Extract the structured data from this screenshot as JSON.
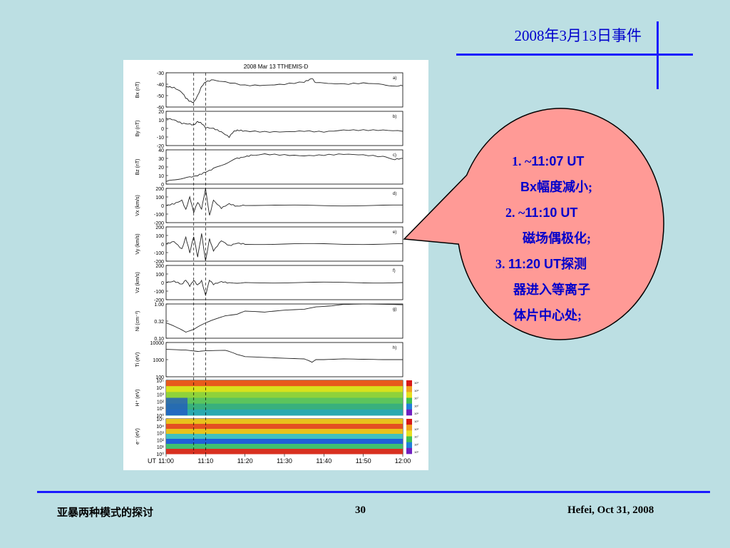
{
  "slide": {
    "title": "2008年3月13日事件",
    "footer_left": "亚暴两种模式的探讨",
    "page_number": "30",
    "footer_right": "Hefei, Oct 31, 2008"
  },
  "callout": {
    "item1_prefix": "1. ~",
    "item1_main": "11:07 UT",
    "item1_cont_a": "Bx",
    "item1_cont_b": "幅度减小;",
    "item2_prefix": "2. ~",
    "item2_main": "11:10 UT",
    "item2_cont": "磁场偶极化;",
    "item3_prefix": "3. ",
    "item3_main": "11:20 UT",
    "item3_tail": "探测",
    "item3_cont1": "器进入等离子",
    "item3_cont2": "体片中心处;",
    "fill_color": "#ff9a96"
  },
  "chart_data": {
    "type": "line",
    "title": "2008 Mar 13 TTHEMIS-D",
    "x_label": "UT",
    "x_ticks": [
      "11:00",
      "11:10",
      "11:20",
      "11:30",
      "11:40",
      "11:50",
      "12:00"
    ],
    "x_range": [
      "11:00",
      "12:00"
    ],
    "event_markers": [
      "11:07",
      "11:10"
    ],
    "panels": [
      {
        "id": "a)",
        "ylabel": "Bx (nT)",
        "ylim": [
          -60,
          -30
        ],
        "yticks": [
          "-30",
          "-40",
          "-50",
          "-60"
        ],
        "series": [
          [
            0,
            -42
          ],
          [
            2,
            -43
          ],
          [
            4,
            -47
          ],
          [
            5,
            -52
          ],
          [
            6,
            -55
          ],
          [
            7,
            -56
          ],
          [
            8,
            -50
          ],
          [
            9,
            -42
          ],
          [
            10,
            -38
          ],
          [
            12,
            -36
          ],
          [
            15,
            -38
          ],
          [
            20,
            -41
          ],
          [
            25,
            -41
          ],
          [
            30,
            -40
          ],
          [
            35,
            -38
          ],
          [
            37,
            -35
          ],
          [
            38,
            -39
          ],
          [
            42,
            -39
          ],
          [
            45,
            -40
          ],
          [
            50,
            -39
          ],
          [
            55,
            -40
          ],
          [
            58,
            -42
          ],
          [
            60,
            -41
          ]
        ]
      },
      {
        "id": "b)",
        "ylabel": "By (nT)",
        "ylim": [
          -20,
          20
        ],
        "yticks": [
          "20",
          "10",
          "0",
          "-10",
          "-20"
        ],
        "series": [
          [
            0,
            12
          ],
          [
            2,
            10
          ],
          [
            4,
            6
          ],
          [
            6,
            5
          ],
          [
            7,
            4
          ],
          [
            8,
            8
          ],
          [
            9,
            6
          ],
          [
            10,
            1
          ],
          [
            12,
            0
          ],
          [
            14,
            -4
          ],
          [
            16,
            -10
          ],
          [
            17,
            -4
          ],
          [
            18,
            -2
          ],
          [
            20,
            -3
          ],
          [
            25,
            -4
          ],
          [
            30,
            -4
          ],
          [
            35,
            -3
          ],
          [
            40,
            -4
          ],
          [
            45,
            -2
          ],
          [
            50,
            -2
          ],
          [
            55,
            -2
          ],
          [
            60,
            -3
          ]
        ]
      },
      {
        "id": "c)",
        "ylabel": "Bz (nT)",
        "ylim": [
          0,
          40
        ],
        "yticks": [
          "40",
          "30",
          "20",
          "10",
          "0"
        ],
        "series": [
          [
            0,
            3
          ],
          [
            3,
            6
          ],
          [
            6,
            8
          ],
          [
            8,
            10
          ],
          [
            10,
            14
          ],
          [
            12,
            18
          ],
          [
            15,
            24
          ],
          [
            18,
            30
          ],
          [
            20,
            32
          ],
          [
            22,
            34
          ],
          [
            25,
            35
          ],
          [
            30,
            34
          ],
          [
            35,
            33
          ],
          [
            40,
            34
          ],
          [
            45,
            35
          ],
          [
            50,
            34
          ],
          [
            55,
            32
          ],
          [
            58,
            29
          ],
          [
            60,
            30
          ]
        ]
      },
      {
        "id": "d)",
        "ylabel": "Vx (km/s)",
        "ylim": [
          -200,
          200
        ],
        "yticks": [
          "200",
          "100",
          "0",
          "-100",
          "-200"
        ],
        "series": [
          [
            0,
            0
          ],
          [
            2,
            20
          ],
          [
            4,
            60
          ],
          [
            5,
            -50
          ],
          [
            6,
            100
          ],
          [
            7,
            -80
          ],
          [
            8,
            40
          ],
          [
            9,
            -40
          ],
          [
            10,
            200
          ],
          [
            11,
            -120
          ],
          [
            12,
            60
          ],
          [
            14,
            -30
          ],
          [
            16,
            20
          ],
          [
            18,
            -10
          ],
          [
            20,
            5
          ],
          [
            30,
            0
          ],
          [
            40,
            0
          ],
          [
            50,
            0
          ],
          [
            60,
            0
          ]
        ]
      },
      {
        "id": "e)",
        "ylabel": "Vy (km/s)",
        "ylim": [
          -200,
          200
        ],
        "yticks": [
          "200",
          "100",
          "0",
          "-100",
          "-200"
        ],
        "series": [
          [
            0,
            0
          ],
          [
            2,
            30
          ],
          [
            4,
            -60
          ],
          [
            5,
            80
          ],
          [
            6,
            -100
          ],
          [
            7,
            90
          ],
          [
            8,
            -150
          ],
          [
            9,
            120
          ],
          [
            10,
            -200
          ],
          [
            11,
            60
          ],
          [
            12,
            -80
          ],
          [
            14,
            40
          ],
          [
            16,
            -20
          ],
          [
            18,
            10
          ],
          [
            20,
            0
          ],
          [
            30,
            0
          ],
          [
            40,
            0
          ],
          [
            50,
            0
          ],
          [
            60,
            0
          ]
        ]
      },
      {
        "id": "f)",
        "ylabel": "Vz (km/s)",
        "ylim": [
          -200,
          200
        ],
        "yticks": [
          "200",
          "100",
          "0",
          "-100",
          "-200"
        ],
        "series": [
          [
            0,
            0
          ],
          [
            2,
            15
          ],
          [
            4,
            -20
          ],
          [
            5,
            30
          ],
          [
            6,
            -40
          ],
          [
            7,
            25
          ],
          [
            8,
            -30
          ],
          [
            9,
            20
          ],
          [
            10,
            -150
          ],
          [
            11,
            30
          ],
          [
            12,
            -20
          ],
          [
            14,
            10
          ],
          [
            16,
            -5
          ],
          [
            20,
            0
          ],
          [
            30,
            0
          ],
          [
            40,
            0
          ],
          [
            50,
            0
          ],
          [
            60,
            0
          ]
        ]
      },
      {
        "id": "g)",
        "ylabel": "Ni (cm⁻³)",
        "scale": "log",
        "ylim": [
          0.1,
          1.0
        ],
        "yticks": [
          "1.00",
          "0.32",
          "0.10"
        ],
        "series": [
          [
            0,
            0.28
          ],
          [
            3,
            0.2
          ],
          [
            5,
            0.15
          ],
          [
            7,
            0.18
          ],
          [
            10,
            0.28
          ],
          [
            13,
            0.38
          ],
          [
            15,
            0.45
          ],
          [
            18,
            0.5
          ],
          [
            20,
            0.62
          ],
          [
            25,
            0.58
          ],
          [
            30,
            0.66
          ],
          [
            35,
            0.7
          ],
          [
            38,
            0.82
          ],
          [
            42,
            0.88
          ],
          [
            45,
            0.97
          ],
          [
            50,
            1.0
          ],
          [
            55,
            0.98
          ],
          [
            60,
            0.95
          ]
        ]
      },
      {
        "id": "h)",
        "ylabel": "Ti (eV)",
        "scale": "log",
        "ylim": [
          100,
          10000
        ],
        "yticks": [
          "10000",
          "1000",
          "100"
        ],
        "series": [
          [
            0,
            4000
          ],
          [
            5,
            3600
          ],
          [
            8,
            3000
          ],
          [
            10,
            3300
          ],
          [
            15,
            3500
          ],
          [
            18,
            2000
          ],
          [
            20,
            1500
          ],
          [
            30,
            1200
          ],
          [
            35,
            1100
          ],
          [
            37,
            700
          ],
          [
            38,
            1000
          ],
          [
            40,
            1000
          ],
          [
            45,
            1100
          ],
          [
            50,
            1050
          ],
          [
            55,
            1000
          ],
          [
            60,
            1000
          ]
        ]
      },
      {
        "id": "i)",
        "ylabel": "H⁺ (eV)",
        "type": "spectrogram",
        "yticks": [
          "10⁵",
          "10⁴",
          "10³",
          "10²",
          "10¹",
          "10⁰"
        ],
        "colorbar": [
          "10⁹",
          "10⁸",
          "10⁷",
          "10⁶",
          "10⁵"
        ]
      },
      {
        "id": "j)",
        "ylabel": "e⁻ (eV)",
        "type": "spectrogram",
        "yticks": [
          "10⁵",
          "10⁴",
          "10³",
          "10²",
          "10¹",
          "10⁰"
        ],
        "colorbar": [
          "10⁹",
          "10⁸",
          "10⁷",
          "10⁶",
          "10⁵"
        ]
      }
    ]
  },
  "colors": {
    "background": "#bcdfe3",
    "rule": "#1a1aff",
    "text_blue": "#0000cc"
  }
}
